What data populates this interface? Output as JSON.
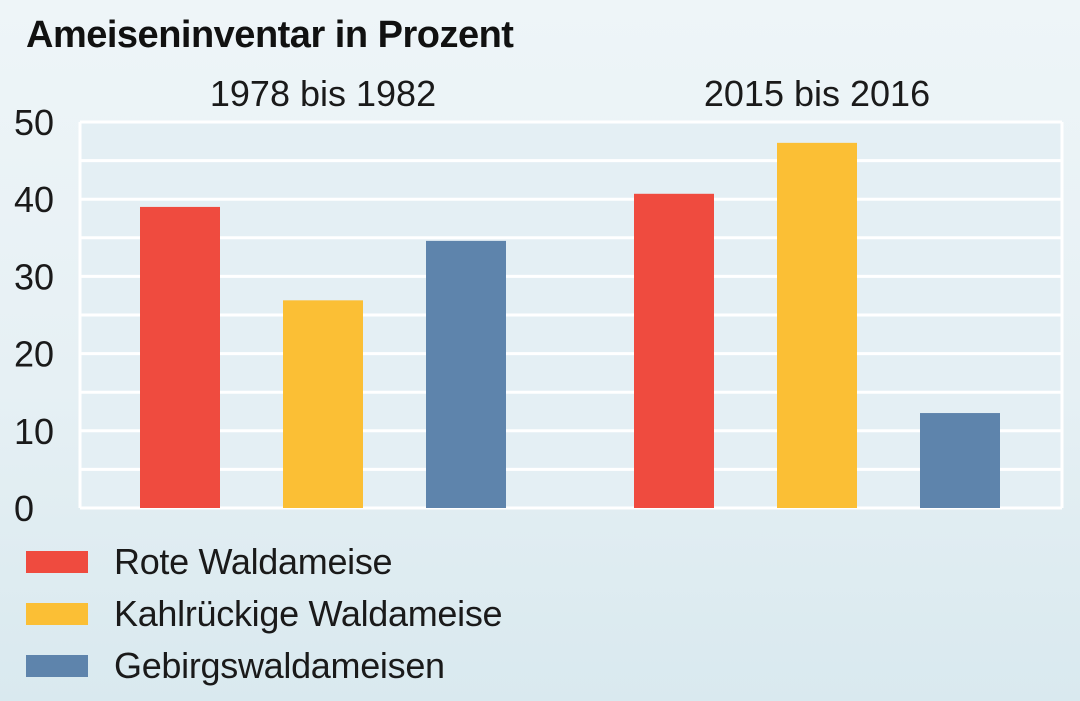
{
  "chart_data": {
    "type": "bar",
    "title": "Ameiseninventar in Prozent",
    "xlabel": "",
    "ylabel": "",
    "categories": [
      "1978 bis 1982",
      "2015 bis 2016"
    ],
    "series": [
      {
        "name": "Rote Waldameise",
        "color": "#ef4b3f",
        "values": [
          39,
          40.7
        ]
      },
      {
        "name": "Kahlrückige Waldameise",
        "color": "#fbbf35",
        "values": [
          26.9,
          47.3
        ]
      },
      {
        "name": "Gebirgswaldameisen",
        "color": "#5e84ac",
        "values": [
          34.6,
          12.3
        ]
      }
    ],
    "ylim": [
      0,
      50
    ],
    "yticks": [
      "0",
      "10",
      "20",
      "30",
      "40",
      "50"
    ],
    "grid": true,
    "legend_position": "bottom-left"
  }
}
